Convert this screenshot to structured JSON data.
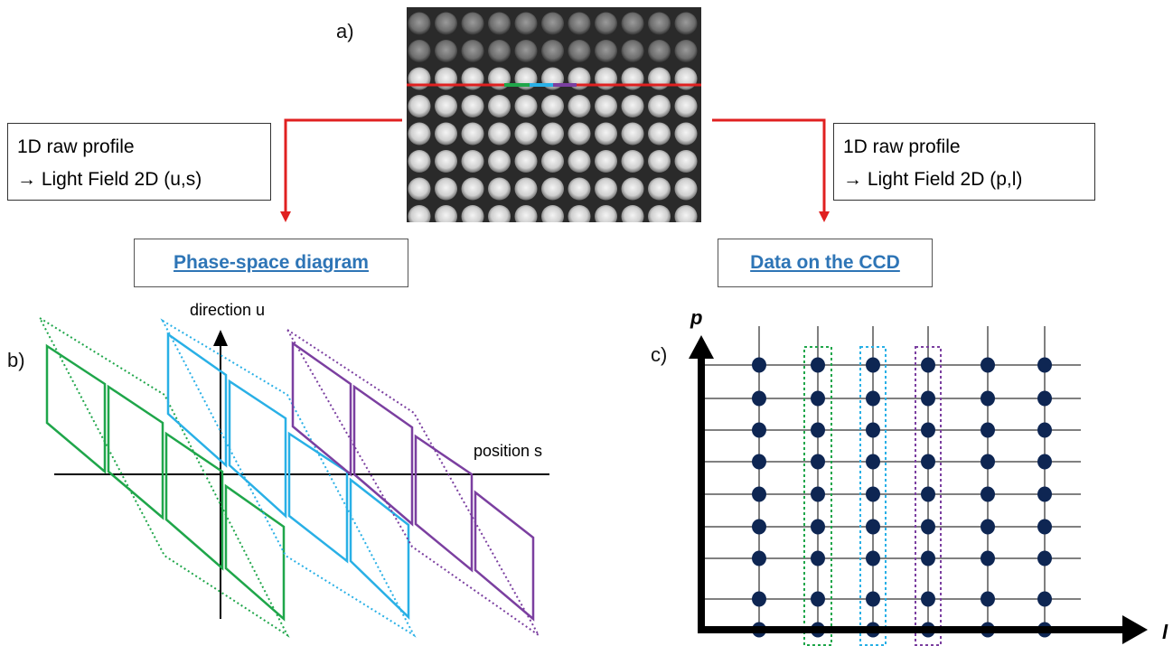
{
  "panel_a": {
    "letter": "a)"
  },
  "panel_b": {
    "letter": "b)",
    "axis_u_label": "direction u",
    "axis_s_label": "position s"
  },
  "panel_c": {
    "letter": "c)",
    "axis_p_label": "p",
    "axis_l_label": "l"
  },
  "left_box": {
    "line1": "1D raw profile",
    "line2": "→ Light Field 2D (u,s)"
  },
  "right_box": {
    "line1": "1D raw profile",
    "line2": "→ Light Field 2D (p,l)"
  },
  "left_link": "Phase-space diagram",
  "right_link": "Data on the CCD",
  "colors": {
    "red": "#E02020",
    "green": "#1FA64A",
    "blue": "#29B0E6",
    "purple": "#7B3FA0",
    "dot": "#0E2653",
    "link": "#2E75B6"
  }
}
